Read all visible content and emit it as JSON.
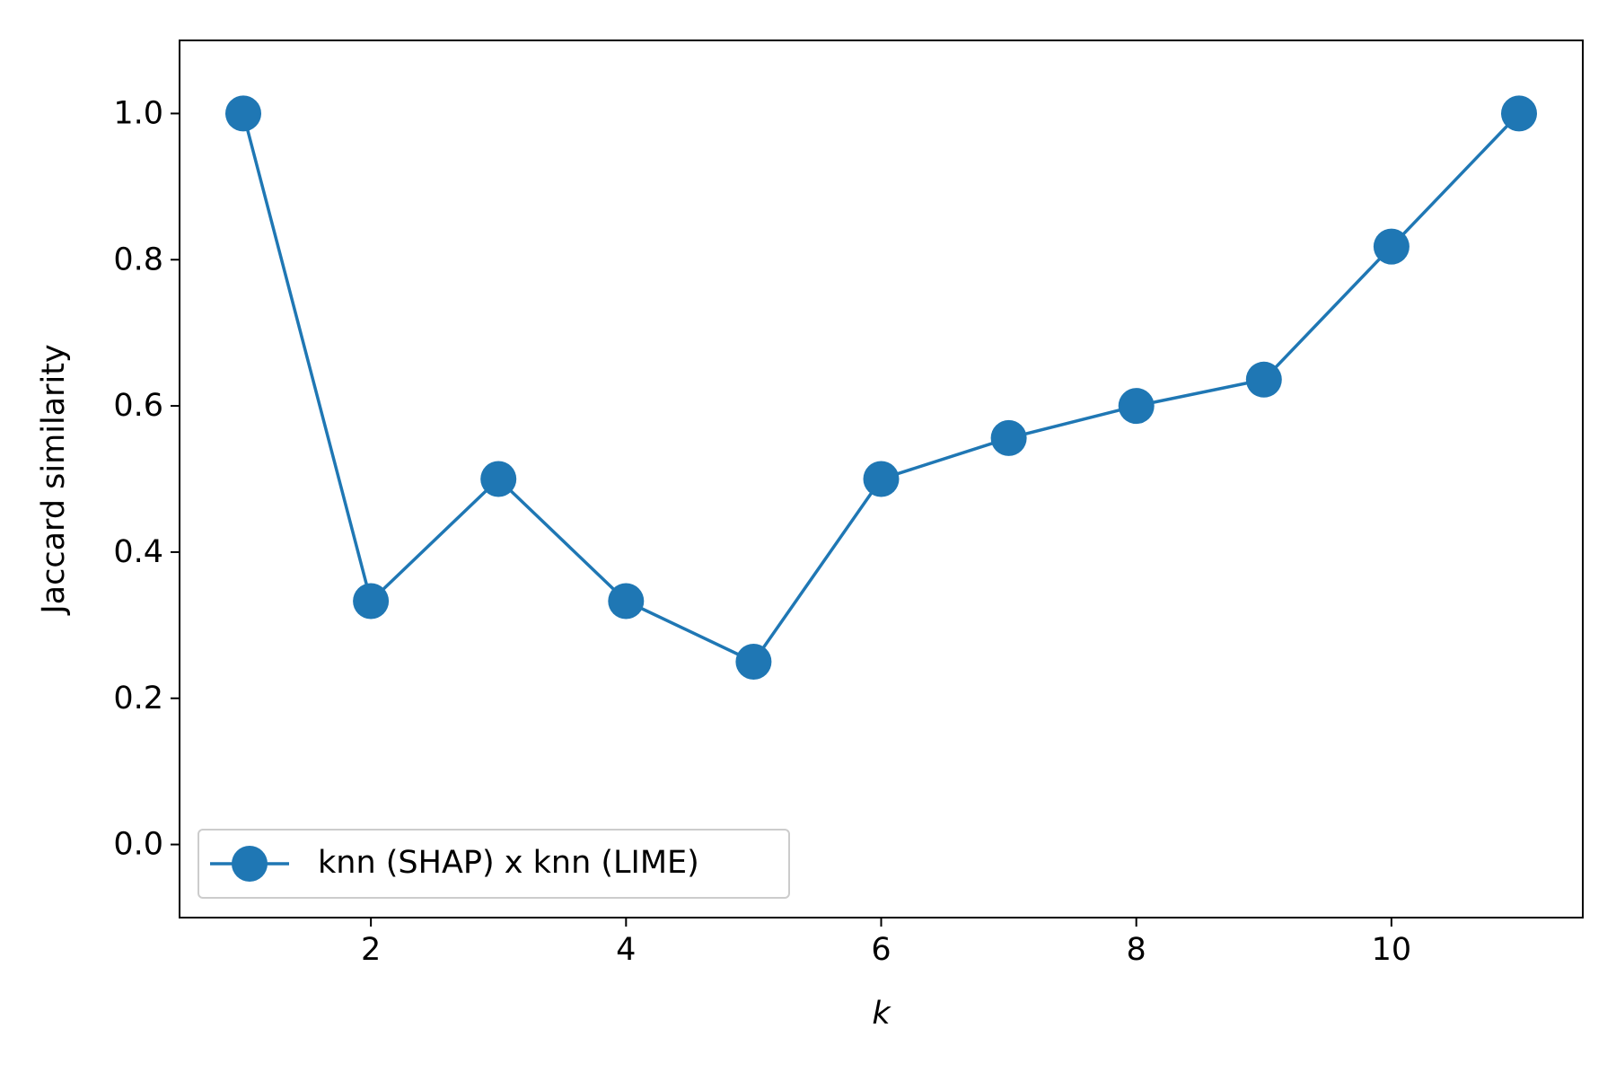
{
  "chart_data": {
    "type": "line",
    "title": "",
    "xlabel": "k",
    "ylabel": "Jaccard similarity",
    "xlim": [
      0.5,
      11.5
    ],
    "ylim": [
      -0.1,
      1.1
    ],
    "xticks": [
      2,
      4,
      6,
      8,
      10
    ],
    "xtick_labels": [
      "2",
      "4",
      "6",
      "8",
      "10"
    ],
    "yticks": [
      0.0,
      0.2,
      0.4,
      0.6,
      0.8,
      1.0
    ],
    "ytick_labels": [
      "0.0",
      "0.2",
      "0.4",
      "0.6",
      "0.8",
      "1.0"
    ],
    "grid": false,
    "legend_position": "lower-left",
    "series": [
      {
        "name": "knn (SHAP) x knn (LIME)",
        "color": "#1f77b4",
        "marker": "circle",
        "x": [
          1,
          2,
          3,
          4,
          5,
          6,
          7,
          8,
          9,
          10,
          11
        ],
        "values": [
          1.0,
          0.333,
          0.5,
          0.333,
          0.25,
          0.5,
          0.556,
          0.6,
          0.636,
          0.818,
          1.0
        ]
      }
    ]
  }
}
